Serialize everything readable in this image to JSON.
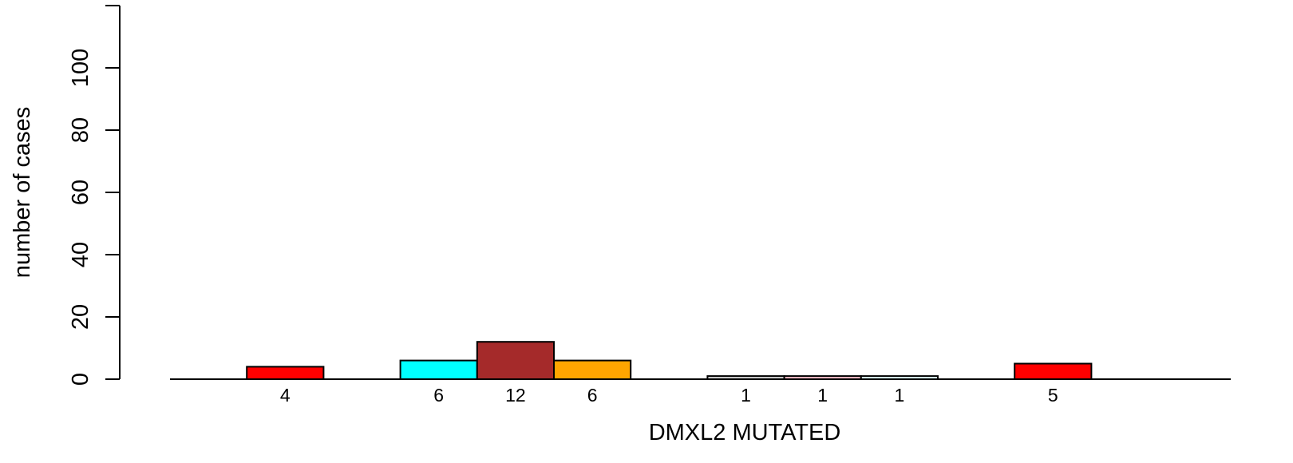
{
  "chart_data": {
    "type": "bar",
    "xlabel": "DMXL2 MUTATED",
    "ylabel": "number of cases",
    "ylim": [
      0,
      120
    ],
    "yticks": [
      0,
      20,
      40,
      60,
      80,
      100
    ],
    "grid": false,
    "legend": "none",
    "slots": 13,
    "bars": [
      {
        "slot": 1,
        "value": 4,
        "label": "4",
        "color": "#ff0000"
      },
      {
        "slot": 3,
        "value": 6,
        "label": "6",
        "color": "#00ffff"
      },
      {
        "slot": 4,
        "value": 12,
        "label": "12",
        "color": "#a52a2a"
      },
      {
        "slot": 5,
        "value": 6,
        "label": "6",
        "color": "#ffa500"
      },
      {
        "slot": 7,
        "value": 1,
        "label": "1",
        "color": "#d3d3d3"
      },
      {
        "slot": 8,
        "value": 1,
        "label": "1",
        "color": "#ffc0cb"
      },
      {
        "slot": 9,
        "value": 1,
        "label": "1",
        "color": "#e0ffff"
      },
      {
        "slot": 11,
        "value": 5,
        "label": "5",
        "color": "#ff0000"
      }
    ]
  }
}
